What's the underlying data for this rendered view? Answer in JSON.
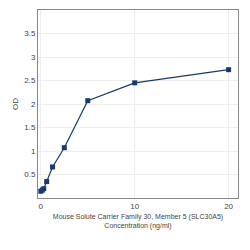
{
  "chart_data": {
    "type": "line",
    "xlabel": "Mouse Solute Carrier Family 30, Member 5 (SLC30A5)\nConcentration (ng/ml)",
    "ylabel": "OD",
    "x": [
      0,
      0.156,
      0.313,
      0.625,
      1.25,
      2.5,
      5,
      10,
      20
    ],
    "values": [
      0.143,
      0.168,
      0.198,
      0.35,
      0.66,
      1.07,
      2.07,
      2.45,
      2.73
    ],
    "color": "#1a3a6b",
    "marker": "square",
    "line_style": "solid",
    "xlim": [
      -0.3,
      21
    ],
    "xticks": [
      0,
      10,
      20
    ],
    "ylim": [
      0.0,
      4.0
    ],
    "yticks": [
      0.5,
      1,
      1.5,
      2,
      2.5,
      3,
      3.5
    ],
    "grid": true
  }
}
